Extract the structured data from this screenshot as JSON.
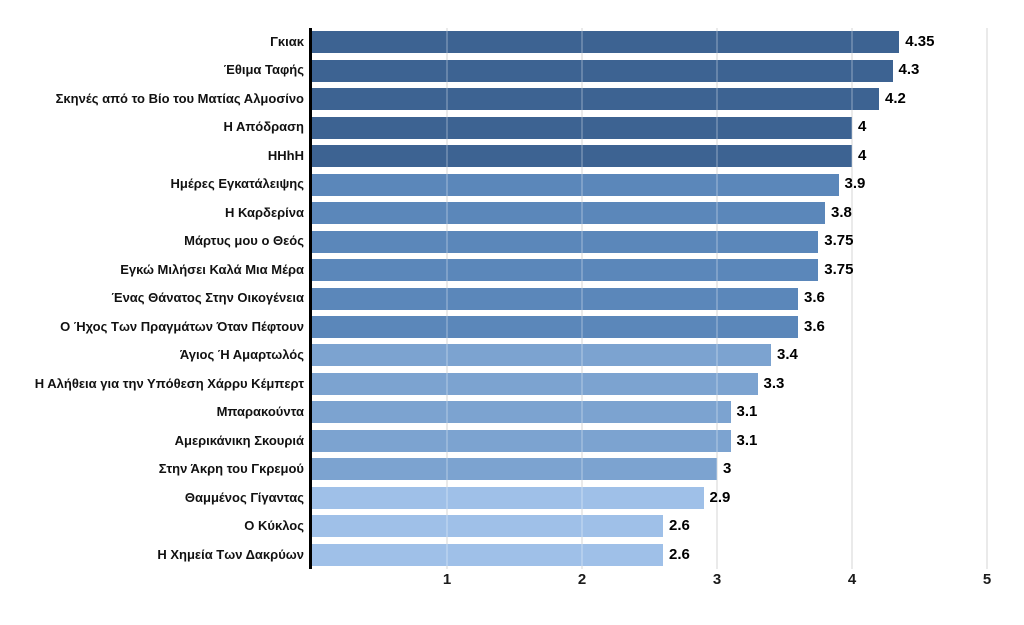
{
  "chart_data": {
    "type": "bar",
    "orientation": "horizontal",
    "title": "",
    "xlabel": "",
    "ylabel": "",
    "xlim": [
      0,
      5
    ],
    "x_ticks": [
      "1",
      "2",
      "3",
      "4",
      "5"
    ],
    "grid": "vertical",
    "legend": "none",
    "categories": [
      "Γκιακ",
      "Έθιμα Ταφής",
      "Σκηνές από το Βίο του Ματίας Αλμοσίνο",
      "Η Απόδραση",
      "HHhH",
      "Ημέρες Εγκατάλειψης",
      "Η Καρδερίνα",
      "Μάρτυς μου ο Θεός",
      "Εγκώ Μιλήσει Καλά Μια Μέρα",
      "Ένας Θάνατος Στην Οικογένεια",
      "Ο Ήχος Των Πραγμάτων Όταν Πέφτουν",
      "Άγιος Ή Αμαρτωλός",
      "Η Αλήθεια για την Υπόθεση Χάρρυ Κέμπερτ",
      "Μπαρακούντα",
      "Αμερικάνικη Σκουριά",
      "Στην Άκρη του Γκρεμού",
      "Θαμμένος Γίγαντας",
      "Ο Κύκλος",
      "Η Χημεία Των Δακρύων"
    ],
    "values": [
      4.35,
      4.3,
      4.2,
      4,
      4,
      3.9,
      3.8,
      3.75,
      3.75,
      3.6,
      3.6,
      3.4,
      3.3,
      3.1,
      3.1,
      3,
      2.9,
      2.6,
      2.6
    ],
    "value_labels": [
      "4.35",
      "4.3",
      "4.2",
      "4",
      "4",
      "3.9",
      "3.8",
      "3.75",
      "3.75",
      "3.6",
      "3.6",
      "3.4",
      "3.3",
      "3.1",
      "3.1",
      "3",
      "2.9",
      "2.6",
      "2.6"
    ],
    "bar_colors": [
      "#3d6392",
      "#3d6392",
      "#3d6392",
      "#3d6392",
      "#3d6392",
      "#5b87ba",
      "#5b87ba",
      "#5b87ba",
      "#5b87ba",
      "#5b87ba",
      "#5b87ba",
      "#7ca3d0",
      "#7ca3d0",
      "#7ca3d0",
      "#7ca3d0",
      "#7ca3d0",
      "#9fc0e8",
      "#9fc0e8",
      "#9fc0e8"
    ],
    "palette_by_rating": {
      "4_to_4.5": "#3d6392",
      "3.5_to_4": "#5b87ba",
      "3_to_3.5": "#7ca3d0",
      "2.5_to_3": "#9fc0e8"
    },
    "axis_color": "#000000",
    "gridline_color": "#e4e4e4",
    "label_color": "#111111"
  }
}
